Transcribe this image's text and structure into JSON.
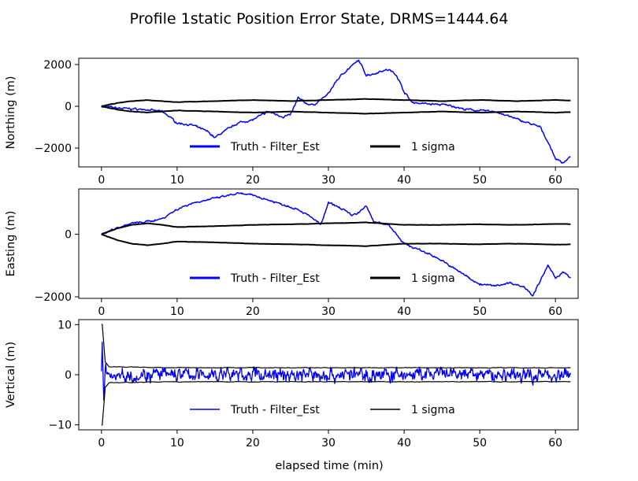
{
  "figure": {
    "title": "Profile 1static  Position Error State, DRMS=1444.64",
    "xlabel": "elapsed time (min)"
  },
  "chart_data": [
    {
      "type": "line",
      "ylabel": "Northing (m)",
      "xlim": [
        -3,
        63
      ],
      "ylim": [
        -2900,
        2300
      ],
      "xticks": [
        0,
        10,
        20,
        30,
        40,
        50,
        60
      ],
      "yticks": [
        -2000,
        0,
        2000
      ],
      "legend": "lower-center",
      "series": [
        {
          "name": "Truth - Filter_Est",
          "color": "#0000ff",
          "x": [
            0,
            2,
            4,
            6,
            8,
            9,
            10,
            12,
            14,
            15,
            16,
            18,
            20,
            22,
            24,
            25,
            26,
            27,
            28,
            30,
            31,
            32,
            33,
            34,
            35,
            36,
            37,
            38,
            39,
            40,
            41,
            42,
            44,
            46,
            48,
            50,
            52,
            54,
            56,
            58,
            59,
            60,
            61,
            62
          ],
          "y": [
            0,
            -80,
            -120,
            -160,
            -250,
            -500,
            -800,
            -900,
            -1200,
            -1500,
            -1250,
            -800,
            -650,
            -250,
            -500,
            -400,
            400,
            150,
            50,
            600,
            1200,
            1600,
            1900,
            2200,
            1500,
            1550,
            1700,
            1750,
            1500,
            700,
            200,
            150,
            100,
            50,
            -150,
            -200,
            -250,
            -500,
            -750,
            -1000,
            -1700,
            -2500,
            -2700,
            -2400
          ]
        },
        {
          "name": "1 sigma",
          "color": "#000000",
          "x": [
            0,
            2,
            4,
            6,
            8,
            10,
            15,
            20,
            25,
            30,
            35,
            40,
            45,
            50,
            55,
            60,
            62
          ],
          "y": [
            0,
            150,
            250,
            300,
            250,
            200,
            250,
            300,
            250,
            300,
            350,
            300,
            250,
            300,
            250,
            300,
            280
          ]
        }
      ]
    },
    {
      "type": "line",
      "ylabel": "Easting (m)",
      "xlim": [
        -3,
        63
      ],
      "ylim": [
        -2050,
        1450
      ],
      "xticks": [
        0,
        10,
        20,
        30,
        40,
        50,
        60
      ],
      "yticks": [
        -2000,
        0
      ],
      "legend": "lower-center",
      "series": [
        {
          "name": "Truth - Filter_Est",
          "color": "#0000ff",
          "x": [
            0,
            2,
            4,
            6,
            8,
            10,
            12,
            14,
            16,
            18,
            20,
            22,
            24,
            26,
            28,
            29,
            30,
            32,
            33,
            34,
            35,
            36,
            38,
            39,
            40,
            42,
            44,
            46,
            48,
            50,
            52,
            54,
            56,
            57,
            58,
            59,
            60,
            61,
            62
          ],
          "y": [
            0,
            200,
            350,
            400,
            500,
            800,
            1000,
            1100,
            1200,
            1300,
            1250,
            1100,
            950,
            800,
            500,
            300,
            1000,
            800,
            600,
            700,
            900,
            400,
            300,
            0,
            -300,
            -500,
            -700,
            -1000,
            -1300,
            -1600,
            -1650,
            -1550,
            -1700,
            -1950,
            -1500,
            -1000,
            -1400,
            -1200,
            -1400
          ]
        },
        {
          "name": "1 sigma",
          "color": "#000000",
          "x": [
            0,
            2,
            4,
            6,
            8,
            10,
            15,
            20,
            25,
            30,
            35,
            40,
            45,
            50,
            55,
            60,
            62
          ],
          "y": [
            0,
            180,
            300,
            350,
            300,
            230,
            260,
            300,
            320,
            350,
            380,
            300,
            300,
            320,
            300,
            330,
            320
          ]
        }
      ]
    },
    {
      "type": "line",
      "ylabel": "Vertical (m)",
      "xlim": [
        -3,
        63
      ],
      "ylim": [
        -11,
        11
      ],
      "xticks": [
        0,
        10,
        20,
        30,
        40,
        50,
        60
      ],
      "yticks": [
        -10,
        0,
        10
      ],
      "legend": "lower-center",
      "series": [
        {
          "name": "Truth - Filter_Est",
          "color": "#0000ff",
          "noise_amplitude": 1.5,
          "x": [
            0,
            0.1,
            0.3,
            0.5,
            1,
            62
          ],
          "y": [
            0,
            6,
            -5,
            2,
            0,
            0
          ]
        },
        {
          "name": "1 sigma",
          "color": "#000000",
          "x": [
            0,
            0.1,
            0.5,
            1,
            5,
            10,
            20,
            30,
            40,
            50,
            60,
            62
          ],
          "y": [
            10,
            10,
            2.5,
            1.6,
            1.5,
            1.4,
            1.4,
            1.4,
            1.4,
            1.4,
            1.4,
            1.4
          ]
        }
      ]
    }
  ]
}
